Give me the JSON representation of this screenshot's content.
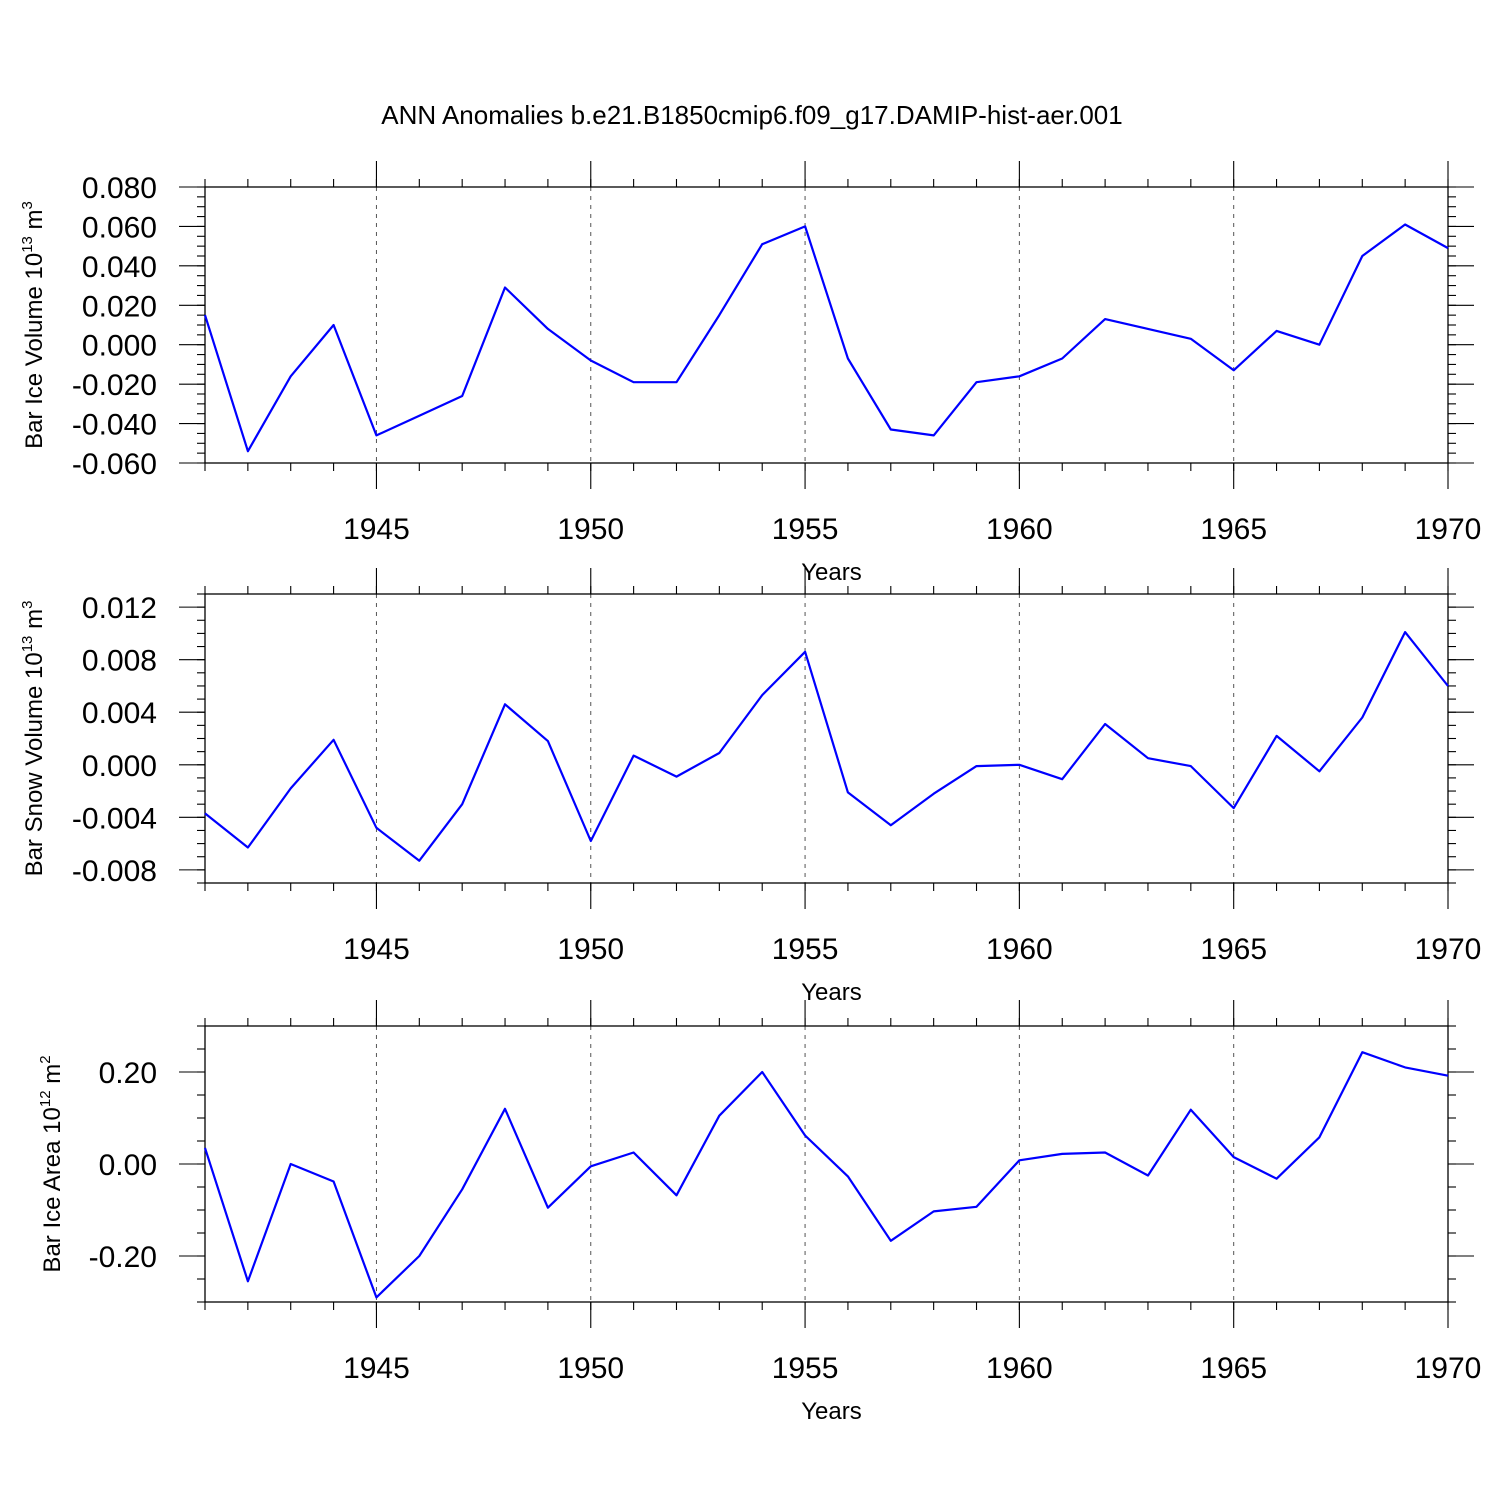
{
  "title": "ANN Anomalies b.e21.B1850cmip6.f09_g17.DAMIP-hist-aer.001",
  "colors": {
    "line": "#0000ff",
    "grid": "#555555",
    "frame": "#000000"
  },
  "chart_data": [
    {
      "type": "line",
      "ylabel_main": "Bar Ice Volume 10",
      "ylabel_sup": "13",
      "ylabel_unit": " m",
      "ylabel_unit_sup": "3",
      "xlabel": "Years",
      "xlim": [
        1941,
        1970
      ],
      "ylim": [
        -0.06,
        0.08
      ],
      "yticks": [
        -0.06,
        -0.04,
        -0.02,
        0.0,
        0.02,
        0.04,
        0.06,
        0.08
      ],
      "ytick_labels": [
        "-0.060",
        "-0.040",
        "-0.020",
        "0.000",
        "0.020",
        "0.040",
        "0.060",
        "0.080"
      ],
      "yminor_step": 0.005,
      "xticks": [
        1945,
        1950,
        1955,
        1960,
        1965,
        1970
      ],
      "xtick_labels": [
        "1945",
        "1950",
        "1955",
        "1960",
        "1965",
        "1970"
      ],
      "grid": "dashed vertical at major x ticks",
      "x": [
        1941,
        1942,
        1943,
        1944,
        1945,
        1946,
        1947,
        1948,
        1949,
        1950,
        1951,
        1952,
        1953,
        1954,
        1955,
        1956,
        1957,
        1958,
        1959,
        1960,
        1961,
        1962,
        1963,
        1964,
        1965,
        1966,
        1967,
        1968,
        1969,
        1970
      ],
      "series": [
        {
          "values": [
            0.015,
            -0.054,
            -0.016,
            0.01,
            -0.046,
            -0.036,
            -0.026,
            0.029,
            0.008,
            -0.008,
            -0.019,
            -0.019,
            0.015,
            0.051,
            0.06,
            -0.007,
            -0.043,
            -0.046,
            -0.019,
            -0.016,
            -0.007,
            0.013,
            0.008,
            0.003,
            -0.013,
            0.007,
            0.0,
            0.045,
            0.061,
            0.049
          ]
        }
      ]
    },
    {
      "type": "line",
      "ylabel_main": "Bar Snow Volume 10",
      "ylabel_sup": "13",
      "ylabel_unit": " m",
      "ylabel_unit_sup": "3",
      "xlabel": "Years",
      "xlim": [
        1941,
        1970
      ],
      "ylim": [
        -0.009,
        0.013
      ],
      "yticks": [
        -0.008,
        -0.004,
        0.0,
        0.004,
        0.008,
        0.012
      ],
      "ytick_labels": [
        "-0.008",
        "-0.004",
        "0.000",
        "0.004",
        "0.008",
        "0.012"
      ],
      "yminor_step": 0.001,
      "xticks": [
        1945,
        1950,
        1955,
        1960,
        1965,
        1970
      ],
      "xtick_labels": [
        "1945",
        "1950",
        "1955",
        "1960",
        "1965",
        "1970"
      ],
      "grid": "dashed vertical at major x ticks",
      "x": [
        1941,
        1942,
        1943,
        1944,
        1945,
        1946,
        1947,
        1948,
        1949,
        1950,
        1951,
        1952,
        1953,
        1954,
        1955,
        1956,
        1957,
        1958,
        1959,
        1960,
        1961,
        1962,
        1963,
        1964,
        1965,
        1966,
        1967,
        1968,
        1969,
        1970
      ],
      "series": [
        {
          "values": [
            -0.0037,
            -0.0063,
            -0.0018,
            0.0019,
            -0.0048,
            -0.0073,
            -0.003,
            0.0046,
            0.0018,
            -0.0058,
            0.0007,
            -0.0009,
            0.0009,
            0.0053,
            0.0086,
            -0.0021,
            -0.0046,
            -0.0022,
            -0.0001,
            0.0,
            -0.0011,
            0.0031,
            0.0005,
            -0.0001,
            -0.0033,
            0.0022,
            -0.0005,
            0.0036,
            0.0101,
            0.006
          ]
        }
      ]
    },
    {
      "type": "line",
      "ylabel_main": "Bar Ice Area 10",
      "ylabel_sup": "12",
      "ylabel_unit": " m",
      "ylabel_unit_sup": "2",
      "xlabel": "Years",
      "xlim": [
        1941,
        1970
      ],
      "ylim": [
        -0.3,
        0.3
      ],
      "yticks": [
        -0.2,
        0.0,
        0.2
      ],
      "ytick_labels": [
        "-0.20",
        "0.00",
        "0.20"
      ],
      "yminor_step": 0.05,
      "xticks": [
        1945,
        1950,
        1955,
        1960,
        1965,
        1970
      ],
      "xtick_labels": [
        "1945",
        "1950",
        "1955",
        "1960",
        "1965",
        "1970"
      ],
      "grid": "dashed vertical at major x ticks",
      "x": [
        1941,
        1942,
        1943,
        1944,
        1945,
        1946,
        1947,
        1948,
        1949,
        1950,
        1951,
        1952,
        1953,
        1954,
        1955,
        1956,
        1957,
        1958,
        1959,
        1960,
        1961,
        1962,
        1963,
        1964,
        1965,
        1966,
        1967,
        1968,
        1969,
        1970
      ],
      "series": [
        {
          "values": [
            0.035,
            -0.255,
            0.0,
            -0.038,
            -0.29,
            -0.2,
            -0.055,
            0.12,
            -0.095,
            -0.005,
            0.025,
            -0.068,
            0.105,
            0.2,
            0.062,
            -0.027,
            -0.167,
            -0.103,
            -0.093,
            0.008,
            0.022,
            0.025,
            -0.025,
            0.118,
            0.015,
            -0.032,
            0.058,
            0.243,
            0.21,
            0.192
          ]
        }
      ]
    }
  ]
}
